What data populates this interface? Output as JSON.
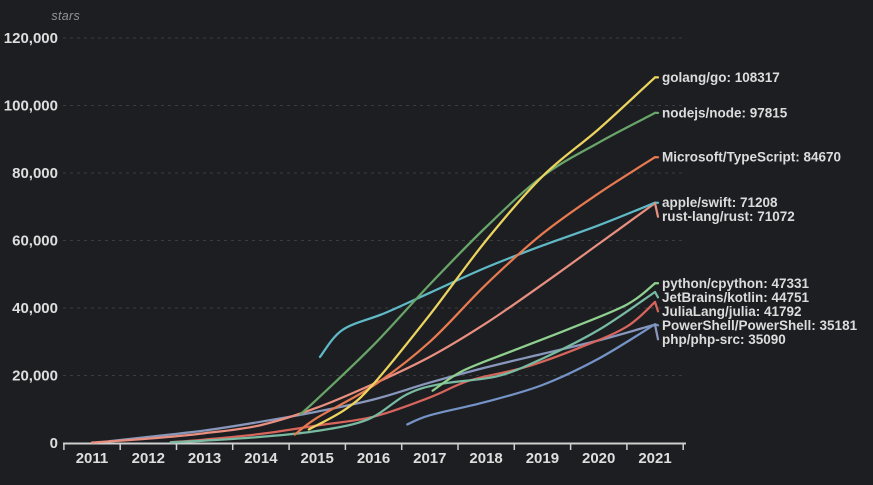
{
  "chart_data": {
    "type": "line",
    "title": "stars",
    "ylabel": "stars",
    "xlabel": "",
    "x_unit": "year",
    "xlim": [
      2011,
      2021
    ],
    "ylim": [
      0,
      120000
    ],
    "grid": "horizontal dashed gridlines every 20,000",
    "legend_position": "labels at right end of each line",
    "background_color": "#1c1e22",
    "x_ticks": [
      "2011",
      "2012",
      "2013",
      "2014",
      "2015",
      "2016",
      "2017",
      "2018",
      "2019",
      "2020",
      "2021"
    ],
    "y_ticks": [
      {
        "value": 0,
        "label": "0"
      },
      {
        "value": 20000,
        "label": "20,000"
      },
      {
        "value": 40000,
        "label": "40,000"
      },
      {
        "value": 60000,
        "label": "60,000"
      },
      {
        "value": 80000,
        "label": "80,000"
      },
      {
        "value": 100000,
        "label": "100,000"
      },
      {
        "value": 120000,
        "label": "120,000"
      }
    ],
    "series": [
      {
        "name": "golang/go",
        "stars": 108317,
        "label": "golang/go: 108317",
        "color": "#ecd45e",
        "points": [
          [
            2014.85,
            4000
          ],
          [
            2015.5,
            10000
          ],
          [
            2016,
            17500
          ],
          [
            2017,
            38000
          ],
          [
            2018,
            60000
          ],
          [
            2019,
            79000
          ],
          [
            2020,
            93000
          ],
          [
            2021,
            108317
          ]
        ]
      },
      {
        "name": "nodejs/node",
        "stars": 97815,
        "label": "nodejs/node: 97815",
        "color": "#69a569",
        "points": [
          [
            2014.7,
            8500
          ],
          [
            2015,
            13000
          ],
          [
            2016,
            29000
          ],
          [
            2017,
            47000
          ],
          [
            2018,
            64000
          ],
          [
            2019,
            79000
          ],
          [
            2020,
            89000
          ],
          [
            2021,
            97815
          ]
        ]
      },
      {
        "name": "Microsoft/TypeScript",
        "stars": 84670,
        "label": "Microsoft/TypeScript: 84670",
        "color": "#e87a50",
        "points": [
          [
            2014.6,
            2500
          ],
          [
            2015,
            7500
          ],
          [
            2016,
            17000
          ],
          [
            2017,
            30000
          ],
          [
            2018,
            47000
          ],
          [
            2019,
            62000
          ],
          [
            2020,
            74000
          ],
          [
            2021,
            84670
          ]
        ]
      },
      {
        "name": "apple/swift",
        "stars": 71208,
        "label": "apple/swift: 71208",
        "color": "#5fb9c6",
        "points": [
          [
            2015.05,
            25500
          ],
          [
            2015.45,
            33500
          ],
          [
            2016.2,
            38500
          ],
          [
            2017,
            44500
          ],
          [
            2018,
            52000
          ],
          [
            2019,
            58500
          ],
          [
            2020,
            64500
          ],
          [
            2021,
            71208
          ]
        ]
      },
      {
        "name": "rust-lang/rust",
        "stars": 71072,
        "label": "rust-lang/rust: 71072",
        "color": "#e98f80",
        "points": [
          [
            2011,
            150
          ],
          [
            2012,
            1300
          ],
          [
            2013,
            2900
          ],
          [
            2014,
            5300
          ],
          [
            2015,
            10500
          ],
          [
            2016,
            17500
          ],
          [
            2017,
            25500
          ],
          [
            2018,
            35500
          ],
          [
            2019,
            47000
          ],
          [
            2020,
            59000
          ],
          [
            2021,
            71072
          ]
        ]
      },
      {
        "name": "python/cpython",
        "stars": 47331,
        "label": "python/cpython: 47331",
        "color": "#8fd08f",
        "points": [
          [
            2017.05,
            15500
          ],
          [
            2017.6,
            21500
          ],
          [
            2018.5,
            27500
          ],
          [
            2019.5,
            34000
          ],
          [
            2020.5,
            41000
          ],
          [
            2021,
            47331
          ]
        ]
      },
      {
        "name": "JetBrains/kotlin",
        "stars": 44751,
        "label": "JetBrains/kotlin: 44751",
        "color": "#78bba2",
        "points": [
          [
            2012.4,
            200
          ],
          [
            2013,
            700
          ],
          [
            2014,
            1800
          ],
          [
            2015,
            3600
          ],
          [
            2015.9,
            7000
          ],
          [
            2016.6,
            14500
          ],
          [
            2017.2,
            17500
          ],
          [
            2018.2,
            19800
          ],
          [
            2019,
            25000
          ],
          [
            2020,
            33500
          ],
          [
            2021,
            44751
          ]
        ]
      },
      {
        "name": "JuliaLang/julia",
        "stars": 41792,
        "label": "JuliaLang/julia: 41792",
        "color": "#d8655c",
        "points": [
          [
            2012.4,
            250
          ],
          [
            2013,
            1000
          ],
          [
            2014,
            2700
          ],
          [
            2015,
            5200
          ],
          [
            2016,
            7800
          ],
          [
            2017,
            13500
          ],
          [
            2017.7,
            18500
          ],
          [
            2018.7,
            22500
          ],
          [
            2019.7,
            28500
          ],
          [
            2020.5,
            34500
          ],
          [
            2021,
            41792
          ]
        ]
      },
      {
        "name": "PowerShell/PowerShell",
        "stars": 35181,
        "label": "PowerShell/PowerShell: 35181",
        "color": "#7593c7",
        "points": [
          [
            2016.6,
            5500
          ],
          [
            2017,
            8200
          ],
          [
            2018,
            12200
          ],
          [
            2019,
            17200
          ],
          [
            2020,
            25000
          ],
          [
            2021,
            35181
          ]
        ]
      },
      {
        "name": "php/php-src",
        "stars": 35090,
        "label": "php/php-src: 35090",
        "color": "#8897bb",
        "points": [
          [
            2011.3,
            500
          ],
          [
            2012,
            1800
          ],
          [
            2013,
            3700
          ],
          [
            2014,
            6300
          ],
          [
            2015,
            9300
          ],
          [
            2016,
            12900
          ],
          [
            2017,
            17900
          ],
          [
            2018,
            22400
          ],
          [
            2019,
            26400
          ],
          [
            2020,
            30400
          ],
          [
            2021,
            35090
          ]
        ]
      }
    ]
  }
}
